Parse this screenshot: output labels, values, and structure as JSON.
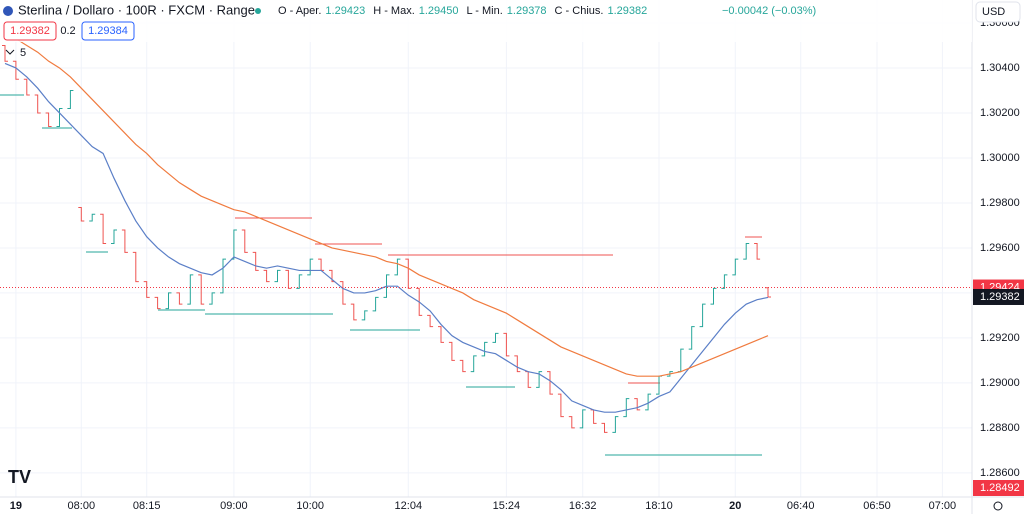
{
  "header": {
    "symbol": "Sterlina / Dollaro · 100R · FXCM · Range",
    "ohlc": [
      {
        "label": "O - Aper.",
        "value": "1.29423"
      },
      {
        "label": "H - Max.",
        "value": "1.29450"
      },
      {
        "label": "L - Min.",
        "value": "1.29378"
      },
      {
        "label": "C - Chius.",
        "value": "1.29382"
      }
    ],
    "change": "−0.00042 (−0.03%)",
    "currency": "USD"
  },
  "toolbar": {
    "sell": "1.29382",
    "spread": "0.2",
    "buy": "1.29384",
    "indicators": "5"
  },
  "chart_data": {
    "type": "ohlc",
    "categories": [
      null,
      "19",
      null,
      null,
      null,
      null,
      null,
      "08:00",
      null,
      null,
      null,
      null,
      null,
      "08:15",
      null,
      null,
      null,
      null,
      null,
      null,
      null,
      "09:00",
      null,
      null,
      null,
      null,
      null,
      null,
      "10:00",
      null,
      null,
      null,
      null,
      null,
      null,
      null,
      null,
      "12:04",
      null,
      null,
      null,
      null,
      null,
      null,
      null,
      null,
      "15:24",
      null,
      null,
      null,
      null,
      null,
      null,
      "16:32",
      null,
      null,
      null,
      null,
      null,
      null,
      "18:10",
      null,
      null,
      null,
      null,
      null,
      null,
      "20",
      null,
      null,
      null,
      null,
      null,
      "06:40",
      null,
      null,
      null,
      null,
      null,
      null,
      "06:50",
      null,
      null,
      null,
      null,
      null,
      "07:00",
      null
    ],
    "open": [
      1.305,
      1.3043,
      1.3035,
      1.3028,
      1.302,
      1.3014,
      1.3022,
      1.2978,
      1.2972,
      1.2975,
      1.2962,
      1.2968,
      1.2958,
      1.2945,
      1.2938,
      1.2933,
      1.294,
      1.2935,
      1.2948,
      1.2935,
      1.294,
      1.2955,
      1.2968,
      1.2958,
      1.295,
      1.2945,
      1.295,
      1.2942,
      1.2948,
      1.2955,
      1.295,
      1.2945,
      1.2935,
      1.2928,
      1.2932,
      1.2938,
      1.2948,
      1.2955,
      1.2942,
      1.293,
      1.2925,
      1.2918,
      1.291,
      1.2905,
      1.2912,
      1.2918,
      1.2922,
      1.2912,
      1.2905,
      1.2898,
      1.2905,
      1.2895,
      1.2885,
      1.288,
      1.2888,
      1.2882,
      1.2878,
      1.2885,
      1.2893,
      1.2888,
      1.2895,
      1.2903,
      1.2905,
      1.2915,
      1.2925,
      1.2935,
      1.2942,
      1.2948,
      1.2955,
      1.2962,
      1.29423,
      null,
      null,
      null,
      null,
      null,
      null,
      null,
      null,
      null,
      null,
      null,
      null,
      null,
      null,
      null,
      null,
      null
    ],
    "close": [
      1.3043,
      1.3035,
      1.3028,
      1.302,
      1.3014,
      1.3022,
      1.303,
      1.2972,
      1.2975,
      1.2962,
      1.2968,
      1.2958,
      1.2945,
      1.2938,
      1.2933,
      1.294,
      1.2935,
      1.2948,
      1.2935,
      1.294,
      1.2955,
      1.2968,
      1.2958,
      1.295,
      1.2945,
      1.295,
      1.2942,
      1.2948,
      1.2955,
      1.295,
      1.2945,
      1.2935,
      1.2928,
      1.2932,
      1.2938,
      1.2948,
      1.2955,
      1.2942,
      1.293,
      1.2925,
      1.2918,
      1.291,
      1.2905,
      1.2912,
      1.2918,
      1.2922,
      1.2912,
      1.2905,
      1.2898,
      1.2905,
      1.2895,
      1.2885,
      1.288,
      1.2888,
      1.2882,
      1.2878,
      1.2885,
      1.2893,
      1.2888,
      1.2895,
      1.2903,
      1.2905,
      1.2915,
      1.2925,
      1.2935,
      1.2942,
      1.2948,
      1.2955,
      1.2962,
      1.2955,
      1.29382,
      null,
      null,
      null,
      null,
      null,
      null,
      null,
      null,
      null,
      null,
      null,
      null,
      null,
      null,
      null,
      null,
      null
    ],
    "up_color": "#26a69a",
    "down_color": "#ef5350",
    "series": [
      {
        "color": "#5b7fc7",
        "values": [
          1.3042,
          1.304,
          1.3036,
          1.3031,
          1.3025,
          1.302,
          1.3015,
          1.301,
          1.3005,
          1.3002,
          1.2991,
          1.2981,
          1.2972,
          1.2965,
          1.296,
          1.2956,
          1.2953,
          1.2951,
          1.2949,
          1.2948,
          1.2951,
          1.2956,
          1.2954,
          1.2952,
          1.2951,
          1.2952,
          1.2951,
          1.295,
          1.295,
          1.295,
          1.2946,
          1.2942,
          1.294,
          1.294,
          1.2941,
          1.2943,
          1.2943,
          1.2939,
          1.2936,
          1.2932,
          1.2926,
          1.2921,
          1.2918,
          1.2916,
          1.2914,
          1.2913,
          1.291,
          1.2907,
          1.2905,
          1.2904,
          1.2901,
          1.2897,
          1.2892,
          1.289,
          1.2888,
          1.2887,
          1.2887,
          1.2888,
          1.2889,
          1.2891,
          1.2894,
          1.2896,
          1.2902,
          1.2908,
          1.2914,
          1.292,
          1.2926,
          1.2931,
          1.2935,
          1.2937,
          1.2938,
          null,
          null,
          null,
          null,
          null,
          null,
          null,
          null,
          null,
          null,
          null,
          null,
          null,
          null,
          null,
          null,
          null
        ]
      },
      {
        "color": "#f07b3f",
        "values": [
          1.3057,
          1.3053,
          1.305,
          1.3047,
          1.3043,
          1.304,
          1.3036,
          1.3031,
          1.3026,
          1.3021,
          1.3016,
          1.3011,
          1.3006,
          1.3002,
          1.2997,
          1.2993,
          1.2989,
          1.2986,
          1.2983,
          1.2981,
          1.2979,
          1.2977,
          1.2976,
          1.2974,
          1.2972,
          1.297,
          1.2968,
          1.2966,
          1.2964,
          1.2962,
          1.296,
          1.2959,
          1.2958,
          1.2957,
          1.2956,
          1.2954,
          1.2953,
          1.2951,
          1.2948,
          1.2946,
          1.2944,
          1.2942,
          1.294,
          1.2937,
          1.2935,
          1.2933,
          1.2931,
          1.2928,
          1.2925,
          1.2922,
          1.2919,
          1.2916,
          1.2914,
          1.2912,
          1.291,
          1.2908,
          1.2906,
          1.2904,
          1.2903,
          1.2903,
          1.2903,
          1.2904,
          1.2905,
          1.2907,
          1.2909,
          1.2911,
          1.2913,
          1.2915,
          1.2917,
          1.2919,
          1.2921,
          null,
          null,
          null,
          null,
          null,
          null,
          null,
          null,
          null,
          null,
          null,
          null,
          null,
          null,
          null,
          null,
          null
        ]
      }
    ],
    "ylim": [
      1.28493,
      1.30702
    ],
    "yticks": [
      {
        "value": 1.286,
        "label": "1.28600"
      },
      {
        "value": 1.288,
        "label": "1.28800"
      },
      {
        "value": 1.29,
        "label": "1.29000"
      },
      {
        "value": 1.292,
        "label": "1.29200"
      },
      {
        "value": 1.294,
        "label": "1.29400"
      },
      {
        "value": 1.296,
        "label": "1.29600"
      },
      {
        "value": 1.298,
        "label": "1.29800"
      },
      {
        "value": 1.3,
        "label": "1.30000"
      },
      {
        "value": 1.302,
        "label": "1.30200"
      },
      {
        "value": 1.304,
        "label": "1.30400"
      },
      {
        "value": 1.306,
        "label": "1.30600"
      }
    ],
    "grid": true,
    "price_labels": [
      {
        "value": 1.29424,
        "color": "#f23645"
      },
      {
        "value": 1.29382,
        "color": "#131722"
      },
      {
        "value": 1.28492,
        "color": "#f23645"
      }
    ]
  }
}
